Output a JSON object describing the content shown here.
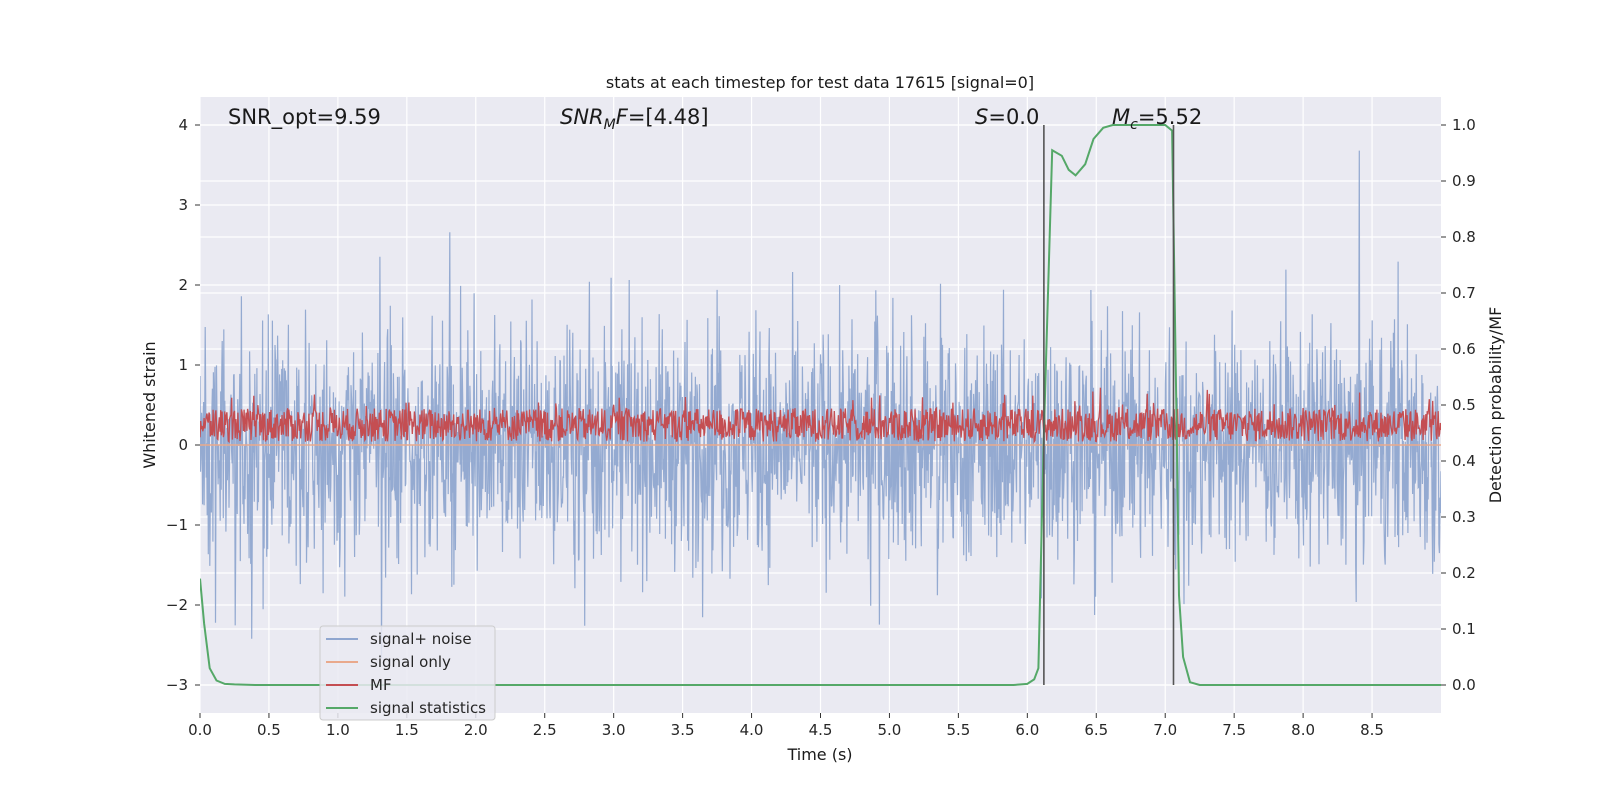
{
  "chart_data": {
    "type": "line",
    "title": "stats at each timestep for test data 17615 [signal=0]",
    "xlabel": "Time (s)",
    "ylabel_left": "Whitened strain",
    "ylabel_right": "Detection probability/MF",
    "xlim": [
      0,
      9.0
    ],
    "ylim_left": [
      -3.35,
      4.35
    ],
    "ylim_right": [
      -0.05,
      1.05
    ],
    "x_ticks": [
      "0.0",
      "0.5",
      "1.0",
      "1.5",
      "2.0",
      "2.5",
      "3.0",
      "3.5",
      "4.0",
      "4.5",
      "5.0",
      "5.5",
      "6.0",
      "6.5",
      "7.0",
      "7.5",
      "8.0",
      "8.5"
    ],
    "x_tick_values": [
      0,
      0.5,
      1,
      1.5,
      2,
      2.5,
      3,
      3.5,
      4,
      4.5,
      5,
      5.5,
      6,
      6.5,
      7,
      7.5,
      8,
      8.5
    ],
    "y_ticks_left": [
      "−3",
      "−2",
      "−1",
      "0",
      "1",
      "2",
      "3",
      "4"
    ],
    "y_tick_values_left": [
      -3,
      -2,
      -1,
      0,
      1,
      2,
      3,
      4
    ],
    "y_ticks_right": [
      "0.0",
      "0.1",
      "0.2",
      "0.3",
      "0.4",
      "0.5",
      "0.6",
      "0.7",
      "0.8",
      "0.9",
      "1.0"
    ],
    "y_tick_values_right": [
      0,
      0.1,
      0.2,
      0.3,
      0.4,
      0.5,
      0.6,
      0.7,
      0.8,
      0.9,
      1.0
    ],
    "annotations": {
      "snr_opt": "SNR_opt=9.59",
      "snr_mf_main": "SNR",
      "snr_mf_sub": "M",
      "snr_mf_rest": "F=[4.48]",
      "s_italic": "S",
      "s_rest": "=0.0",
      "mc_italic": "M",
      "mc_sub": "c",
      "mc_rest": "=5.52"
    },
    "vertical_lines_x": [
      6.12,
      7.06
    ],
    "series": [
      {
        "name": "signal+ noise",
        "color": "#8fa6cf",
        "axis": "left",
        "description": "noisy whitened strain, roughly within ±2.5 around 0"
      },
      {
        "name": "signal only",
        "color": "#e9a98c",
        "axis": "left",
        "values_constant": 0
      },
      {
        "name": "MF",
        "color": "#c44e52",
        "axis": "left",
        "description": "matched filter output roughly between 0 and 0.8"
      },
      {
        "name": "signal statistics",
        "color": "#55a868",
        "axis": "right",
        "x": [
          0.0,
          0.03,
          0.07,
          0.12,
          0.18,
          0.25,
          0.4,
          1.0,
          2.0,
          3.0,
          4.0,
          5.0,
          5.6,
          5.9,
          6.0,
          6.05,
          6.08,
          6.12,
          6.18,
          6.25,
          6.3,
          6.35,
          6.42,
          6.48,
          6.55,
          6.62,
          6.7,
          6.8,
          6.9,
          7.0,
          7.05,
          7.08,
          7.1,
          7.13,
          7.18,
          7.25,
          7.5,
          8.0,
          8.5,
          9.0
        ],
        "y": [
          0.19,
          0.11,
          0.03,
          0.008,
          0.002,
          0.001,
          0.0,
          0.0,
          0.0,
          0.0,
          0.0,
          0.0,
          0.0,
          0.0,
          0.002,
          0.01,
          0.03,
          0.45,
          0.955,
          0.945,
          0.92,
          0.91,
          0.93,
          0.975,
          0.995,
          1.0,
          1.0,
          1.0,
          1.0,
          1.0,
          0.99,
          0.5,
          0.16,
          0.05,
          0.005,
          0.0,
          0.0,
          0.0,
          0.0,
          0.0
        ]
      }
    ],
    "legend": {
      "position": "lower-left",
      "entries": [
        "signal+ noise",
        "signal only",
        "MF",
        "signal statistics"
      ]
    },
    "grid": true
  },
  "style": {
    "plot_bg": "#eaeaf2",
    "grid_color": "#ffffff",
    "vline_color": "#555555"
  }
}
